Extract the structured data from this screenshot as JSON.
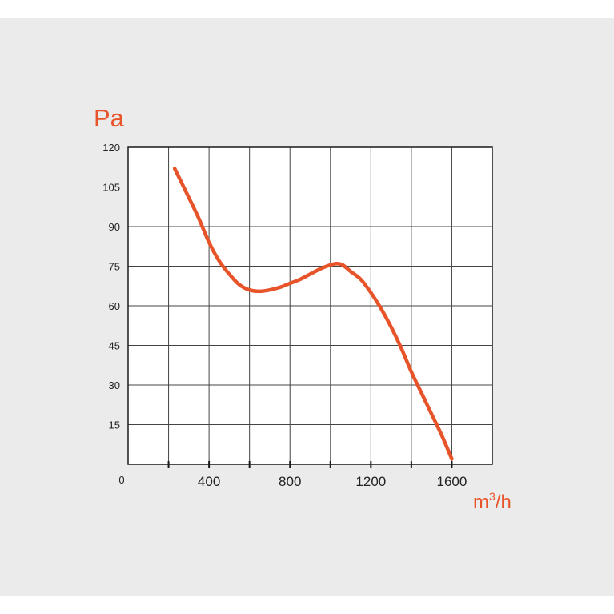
{
  "chart_data": {
    "type": "line",
    "ylabel": "Pa",
    "xlabel_base": "m",
    "xlabel_sup": "3",
    "xlabel_tail": "/h",
    "origin_label": "0",
    "xlim": [
      0,
      1800
    ],
    "ylim": [
      0,
      120
    ],
    "x_ticks": [
      400,
      800,
      1200,
      1600
    ],
    "x_tick_labels": [
      "400",
      "800",
      "1200",
      "1600"
    ],
    "x_grid_step": 200,
    "y_ticks": [
      15,
      30,
      45,
      60,
      75,
      90,
      105,
      120
    ],
    "y_tick_labels": [
      "15",
      "30",
      "45",
      "60",
      "75",
      "90",
      "105",
      "120"
    ],
    "grid": true,
    "series": [
      {
        "color": "#e8542a",
        "x": [
          230,
          300,
          350,
          400,
          450,
          500,
          550,
          600,
          650,
          700,
          750,
          800,
          850,
          900,
          950,
          1000,
          1030,
          1060,
          1100,
          1150,
          1200,
          1250,
          1300,
          1350,
          1400,
          1450,
          1500,
          1550,
          1600
        ],
        "y": [
          112,
          101,
          93,
          84,
          77,
          72,
          68,
          66,
          65.5,
          66,
          67,
          68.5,
          70,
          72,
          74,
          75.5,
          76,
          75.5,
          73,
          70,
          65,
          59,
          52,
          44,
          35,
          27,
          19,
          11,
          2
        ]
      }
    ]
  }
}
